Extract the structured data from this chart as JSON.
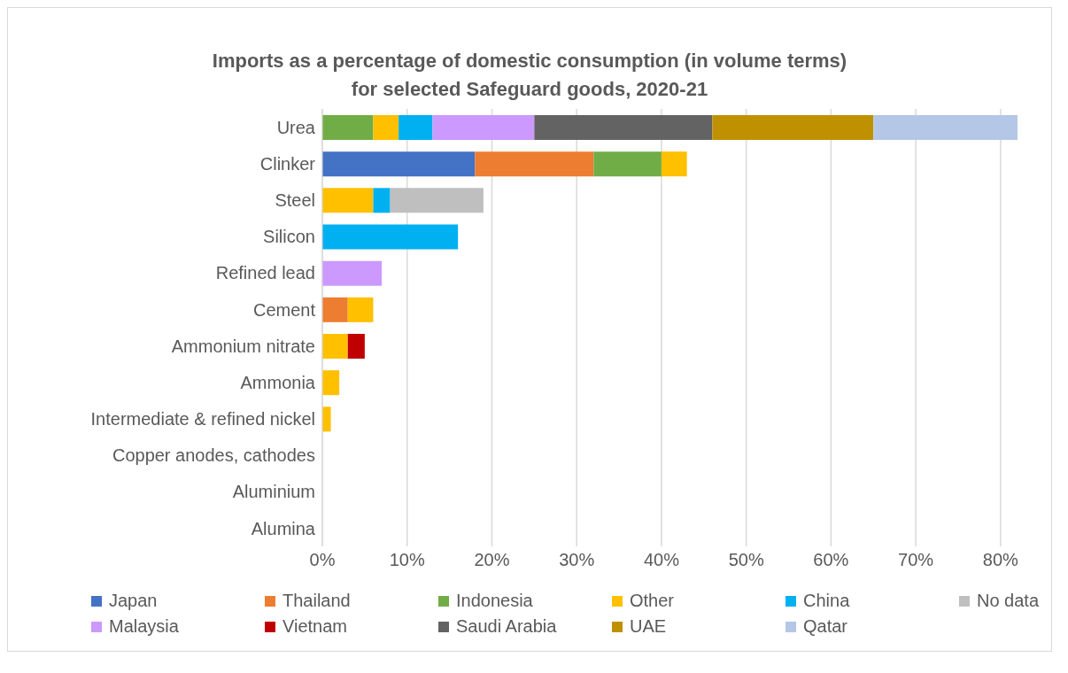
{
  "chart_data": {
    "type": "bar",
    "orientation": "horizontal",
    "stacked": true,
    "title": "Imports as a percentage of domestic consumption (in volume terms)\nfor selected Safeguard goods, 2020-21",
    "categories": [
      "Urea",
      "Clinker",
      "Steel",
      "Silicon",
      "Refined lead",
      "Cement",
      "Ammonium nitrate",
      "Ammonia",
      "Intermediate & refined nickel",
      "Copper anodes, cathodes",
      "Aluminium",
      "Alumina"
    ],
    "series": [
      {
        "name": "Japan",
        "color": "#4472c4",
        "values": [
          null,
          18,
          null,
          null,
          null,
          null,
          null,
          null,
          null,
          null,
          null,
          null
        ]
      },
      {
        "name": "Thailand",
        "color": "#ed7d31",
        "values": [
          null,
          14,
          null,
          null,
          null,
          3,
          null,
          null,
          null,
          null,
          null,
          null
        ]
      },
      {
        "name": "Indonesia",
        "color": "#70ad47",
        "values": [
          6,
          8,
          null,
          null,
          null,
          null,
          null,
          null,
          null,
          null,
          null,
          null
        ]
      },
      {
        "name": "Other",
        "color": "#ffc000",
        "values": [
          3,
          3,
          6,
          null,
          null,
          3,
          3,
          2,
          1,
          null,
          null,
          null
        ]
      },
      {
        "name": "China",
        "color": "#00b0f0",
        "values": [
          4,
          null,
          2,
          16,
          null,
          null,
          null,
          null,
          null,
          null,
          null,
          null
        ]
      },
      {
        "name": "No data",
        "color": "#bfbfbf",
        "values": [
          null,
          null,
          11,
          null,
          null,
          null,
          null,
          null,
          null,
          null,
          null,
          null
        ]
      },
      {
        "name": "Malaysia",
        "color": "#cc99ff",
        "values": [
          12,
          null,
          null,
          null,
          7,
          null,
          null,
          null,
          null,
          null,
          null,
          null
        ]
      },
      {
        "name": "Vietnam",
        "color": "#c00000",
        "values": [
          null,
          null,
          null,
          null,
          null,
          null,
          2,
          null,
          null,
          null,
          null,
          null
        ]
      },
      {
        "name": "Saudi Arabia",
        "color": "#636363",
        "values": [
          21,
          null,
          null,
          null,
          null,
          null,
          null,
          null,
          null,
          null,
          null,
          null
        ]
      },
      {
        "name": "UAE",
        "color": "#bf9000",
        "values": [
          19,
          null,
          null,
          null,
          null,
          null,
          null,
          null,
          null,
          null,
          null,
          null
        ]
      },
      {
        "name": "Qatar",
        "color": "#b4c7e7",
        "values": [
          17,
          null,
          null,
          null,
          null,
          null,
          null,
          null,
          null,
          null,
          null,
          null
        ]
      }
    ],
    "xlim": [
      0,
      82
    ],
    "xticks": [
      {
        "value": 0,
        "label": "0%"
      },
      {
        "value": 10,
        "label": "10%"
      },
      {
        "value": 20,
        "label": "20%"
      },
      {
        "value": 30,
        "label": "30%"
      },
      {
        "value": 40,
        "label": "40%"
      },
      {
        "value": 50,
        "label": "50%"
      },
      {
        "value": 60,
        "label": "60%"
      },
      {
        "value": 70,
        "label": "70%"
      },
      {
        "value": 80,
        "label": "80%"
      }
    ],
    "grid": "x",
    "legend": "bottom"
  }
}
